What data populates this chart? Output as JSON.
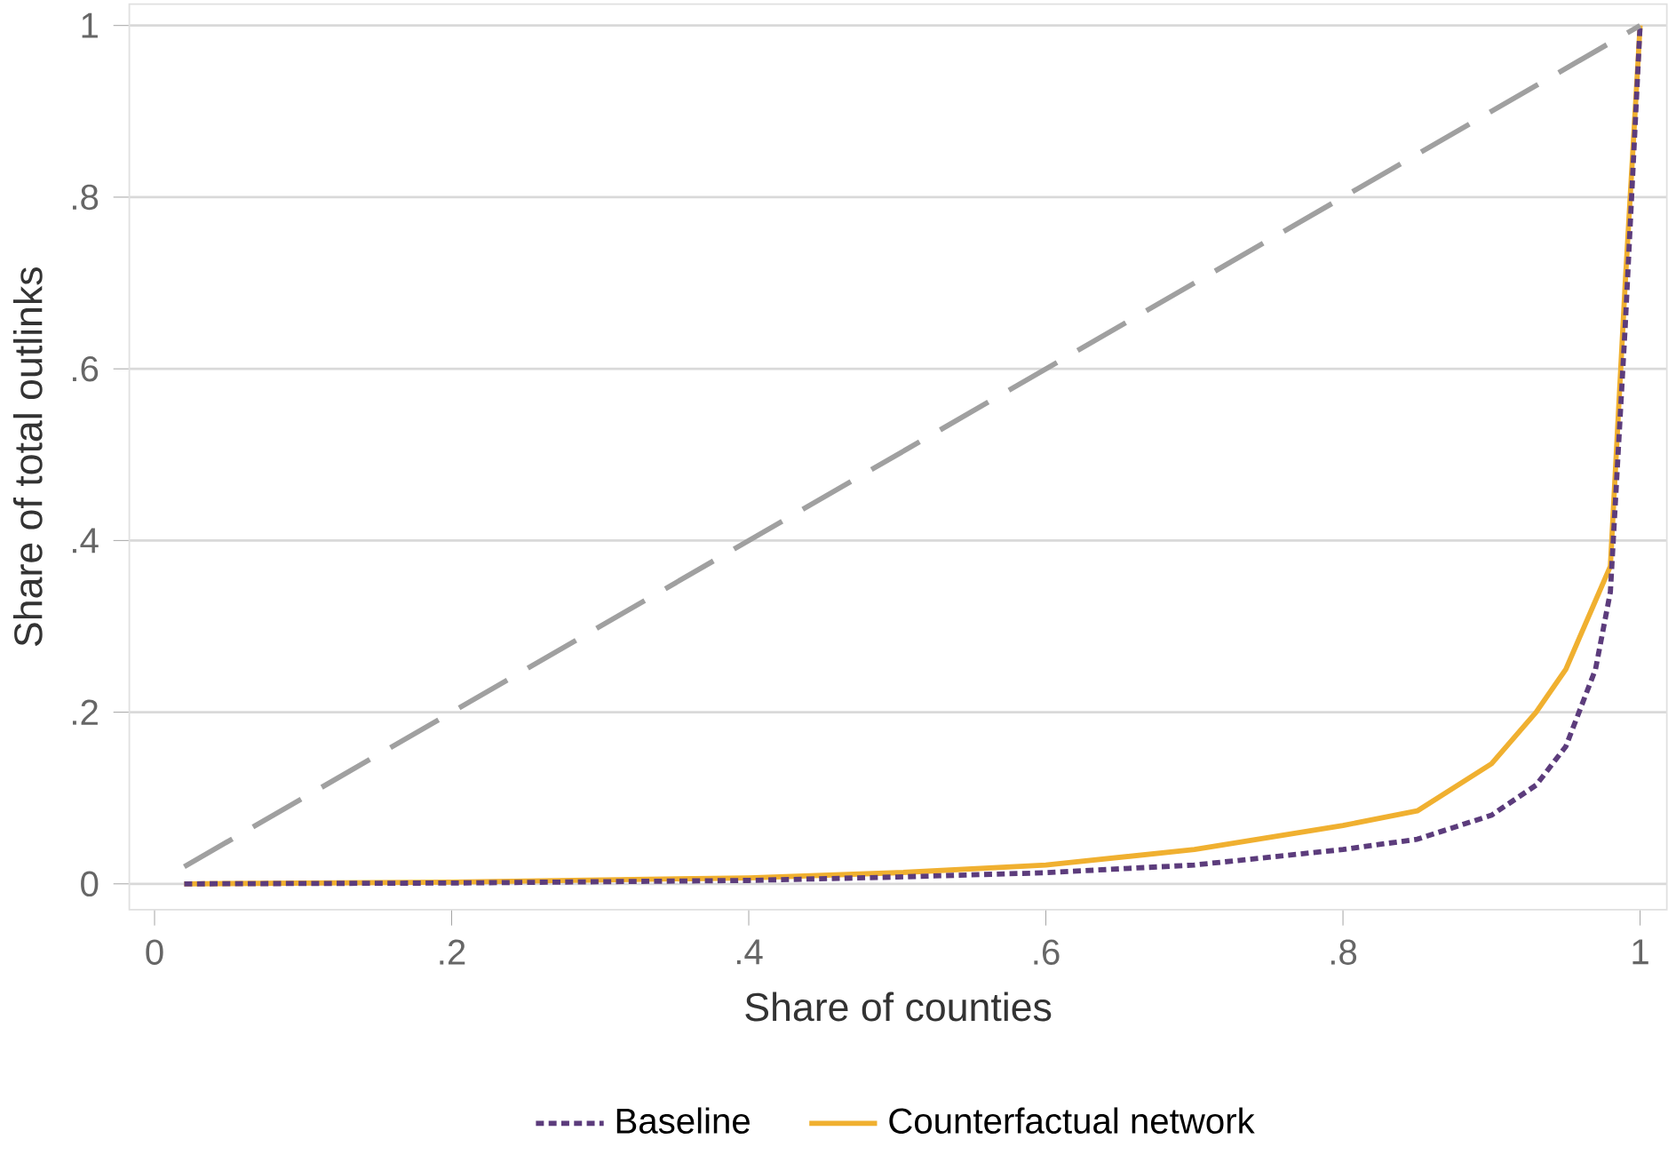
{
  "chart_data": {
    "type": "line",
    "xlabel": "Share of counties",
    "ylabel": "Share of total outlinks",
    "xlim": [
      -0.017,
      1.018
    ],
    "ylim": [
      -0.03,
      1.025
    ],
    "xticks": [
      0,
      {
        "value": 0.2,
        "label": ".2"
      },
      {
        "value": 0.4,
        "label": ".4"
      },
      {
        "value": 0.6,
        "label": ".6"
      },
      {
        "value": 0.8,
        "label": ".8"
      },
      1
    ],
    "yticks": [
      0,
      {
        "value": 0.2,
        "label": ".2"
      },
      {
        "value": 0.4,
        "label": ".4"
      },
      {
        "value": 0.6,
        "label": ".6"
      },
      {
        "value": 0.8,
        "label": ".8"
      },
      1
    ],
    "grid": "y",
    "legend": "bottom",
    "series": [
      {
        "color": "#a0a0a0",
        "line_style": "dashed",
        "x": [
          0.02,
          1
        ],
        "values": [
          0.02,
          1
        ]
      },
      {
        "name": "Baseline",
        "color": "#5c3c7c",
        "line_style": "dotted",
        "x": [
          0.02,
          0.2,
          0.4,
          0.5,
          0.6,
          0.7,
          0.8,
          0.85,
          0.9,
          0.93,
          0.95,
          0.97,
          0.98,
          0.99,
          1
        ],
        "values": [
          0,
          0.001,
          0.004,
          0.008,
          0.013,
          0.022,
          0.04,
          0.052,
          0.08,
          0.115,
          0.16,
          0.25,
          0.34,
          0.65,
          1
        ]
      },
      {
        "name": "Counterfactual network",
        "color": "#f0b030",
        "line_style": "solid",
        "x": [
          0.02,
          0.2,
          0.4,
          0.5,
          0.6,
          0.7,
          0.8,
          0.85,
          0.9,
          0.93,
          0.95,
          0.97,
          0.98,
          0.99,
          1
        ],
        "values": [
          0,
          0.002,
          0.007,
          0.013,
          0.022,
          0.04,
          0.068,
          0.085,
          0.14,
          0.2,
          0.25,
          0.33,
          0.37,
          0.7,
          1
        ]
      }
    ]
  }
}
